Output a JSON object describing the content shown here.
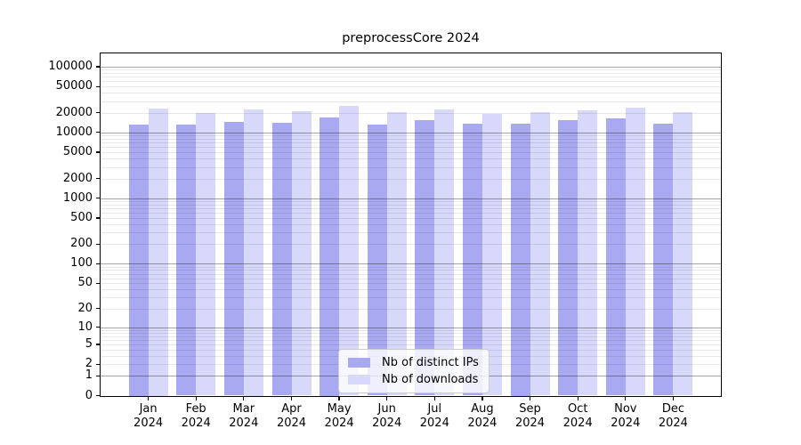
{
  "title": "preprocessCore 2024",
  "chart_data": {
    "type": "bar",
    "title": "preprocessCore 2024",
    "categories": [
      "Jan",
      "Feb",
      "Mar",
      "Apr",
      "May",
      "Jun",
      "Jul",
      "Aug",
      "Sep",
      "Oct",
      "Nov",
      "Dec"
    ],
    "xtick_year": "2024",
    "series": [
      {
        "name": "Nb of distinct IPs",
        "color": "#a9a9f2",
        "values": [
          13400,
          13000,
          14600,
          13900,
          16900,
          13200,
          15200,
          13500,
          13600,
          15200,
          16200,
          13500
        ]
      },
      {
        "name": "Nb of downloads",
        "color": "#d8d8fa",
        "values": [
          23100,
          19700,
          22400,
          21300,
          25200,
          20500,
          22200,
          19000,
          20300,
          21800,
          24100,
          20500
        ]
      }
    ],
    "yscale": "log1p",
    "yticks": [
      0,
      1,
      2,
      5,
      10,
      20,
      50,
      100,
      200,
      500,
      1000,
      2000,
      5000,
      10000,
      20000,
      50000,
      100000
    ],
    "ylim": [
      0,
      152000
    ],
    "grid": true,
    "legend_position": "lower center",
    "background_color": "#ffffff",
    "grid_major_color": "#a6a6a6",
    "grid_minor_color": "#e8e8e8"
  }
}
